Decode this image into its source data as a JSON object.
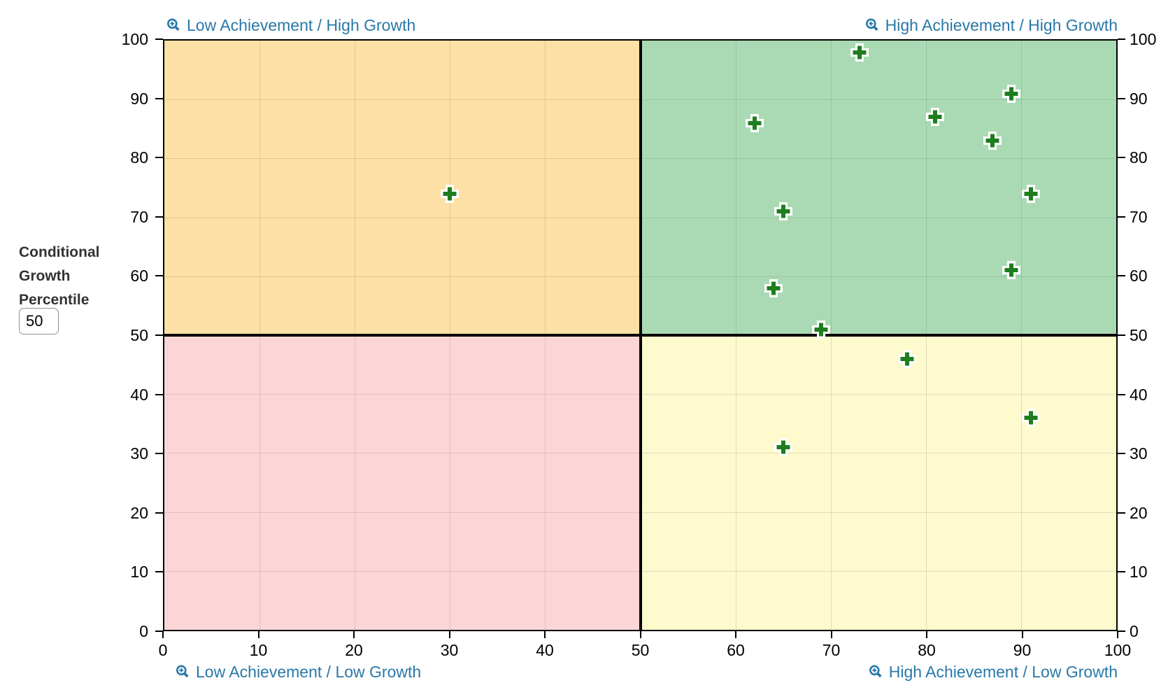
{
  "sidebar": {
    "y_axis_title_lines": [
      "Conditional",
      "Growth",
      "Percentile"
    ],
    "threshold_value": "50"
  },
  "quadrant_labels": {
    "top_left": "Low Achievement / High Growth",
    "top_right": "High Achievement / High Growth",
    "bottom_left": "Low Achievement / Low Growth",
    "bottom_right": "High Achievement / Low Growth"
  },
  "colors": {
    "quadrant_top_left": "#FCE0A6",
    "quadrant_top_right": "#AADAB4",
    "quadrant_bottom_left": "#FCD6D7",
    "quadrant_bottom_right": "#FDFACE",
    "marker_green": "#1E7D1E",
    "marker_halo": "#FFFFFF",
    "label_blue": "#2978A8",
    "axis_black": "#000000"
  },
  "icons": {
    "corner_label_icon": "zoom-in-magnifier-icon"
  },
  "chart_data": {
    "type": "scatter",
    "marker_style": "plus",
    "title": "",
    "xlabel": "",
    "ylabel": "Conditional Growth Percentile",
    "xlim": [
      0,
      100
    ],
    "ylim": [
      0,
      100
    ],
    "x_ticks": [
      0,
      10,
      20,
      30,
      40,
      50,
      60,
      70,
      80,
      90,
      100
    ],
    "y_ticks": [
      0,
      10,
      20,
      30,
      40,
      50,
      60,
      70,
      80,
      90,
      100
    ],
    "grid": true,
    "quadrant_boundary_x": 50,
    "quadrant_boundary_y": 50,
    "points": [
      {
        "x": 30,
        "y": 74
      },
      {
        "x": 73,
        "y": 98
      },
      {
        "x": 62,
        "y": 86
      },
      {
        "x": 89,
        "y": 91
      },
      {
        "x": 81,
        "y": 87
      },
      {
        "x": 87,
        "y": 83
      },
      {
        "x": 91,
        "y": 74
      },
      {
        "x": 65,
        "y": 71
      },
      {
        "x": 89,
        "y": 61
      },
      {
        "x": 64,
        "y": 58
      },
      {
        "x": 69,
        "y": 51
      },
      {
        "x": 78,
        "y": 46
      },
      {
        "x": 91,
        "y": 36
      },
      {
        "x": 65,
        "y": 31
      }
    ]
  }
}
